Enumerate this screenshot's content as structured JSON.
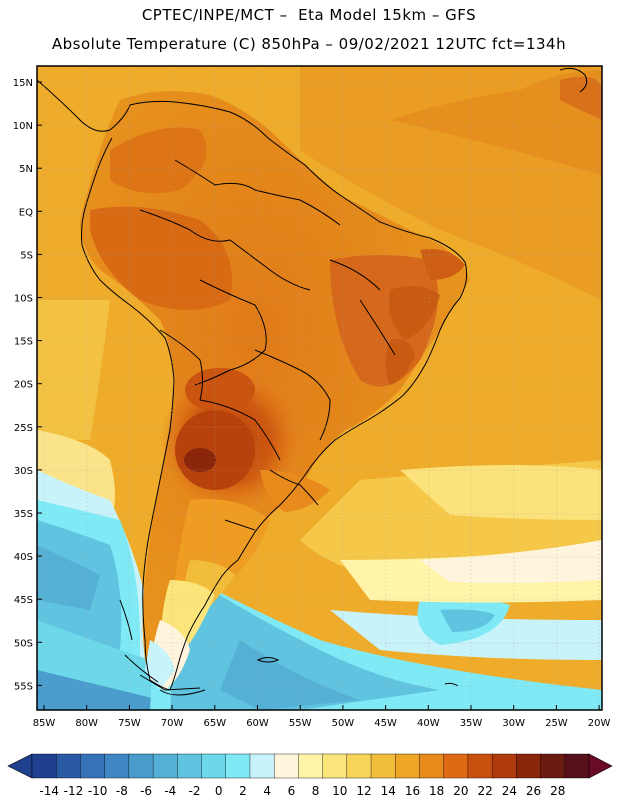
{
  "header": {
    "line1": "CPTEC/INPE/MCT –  Eta Model 15km – GFS",
    "line2": "Absolute Temperature (C) 850hPa – 09/02/2021 12UTC fct=134h"
  },
  "map": {
    "lat_labels": [
      "15N",
      "10N",
      "5N",
      "EQ",
      "5S",
      "10S",
      "15S",
      "20S",
      "25S",
      "30S",
      "35S",
      "40S",
      "45S",
      "50S",
      "55S"
    ],
    "lon_labels": [
      "85W",
      "80W",
      "75W",
      "70W",
      "65W",
      "60W",
      "55W",
      "50W",
      "45W",
      "40W",
      "35W",
      "30W",
      "25W",
      "20W"
    ]
  },
  "colorbar": {
    "labels": [
      "-14",
      "-12",
      "-10",
      "-8",
      "-6",
      "-4",
      "-2",
      "0",
      "2",
      "4",
      "6",
      "8",
      "10",
      "12",
      "14",
      "16",
      "18",
      "20",
      "22",
      "24",
      "26",
      "28"
    ],
    "colors": [
      "#1f3f8f",
      "#2a5aa5",
      "#3572b8",
      "#3f87c3",
      "#4a9ccc",
      "#55b0d6",
      "#60c4e0",
      "#6dd8ea",
      "#7fe9f5",
      "#c9f3fb",
      "#fff5dc",
      "#fff4a8",
      "#fbe57a",
      "#f8d35a",
      "#f2bd3a",
      "#efa626",
      "#e98a1c",
      "#e06a14",
      "#c84f0e",
      "#b03a0c",
      "#8a260a",
      "#6b1a10",
      "#55101a"
    ]
  }
}
